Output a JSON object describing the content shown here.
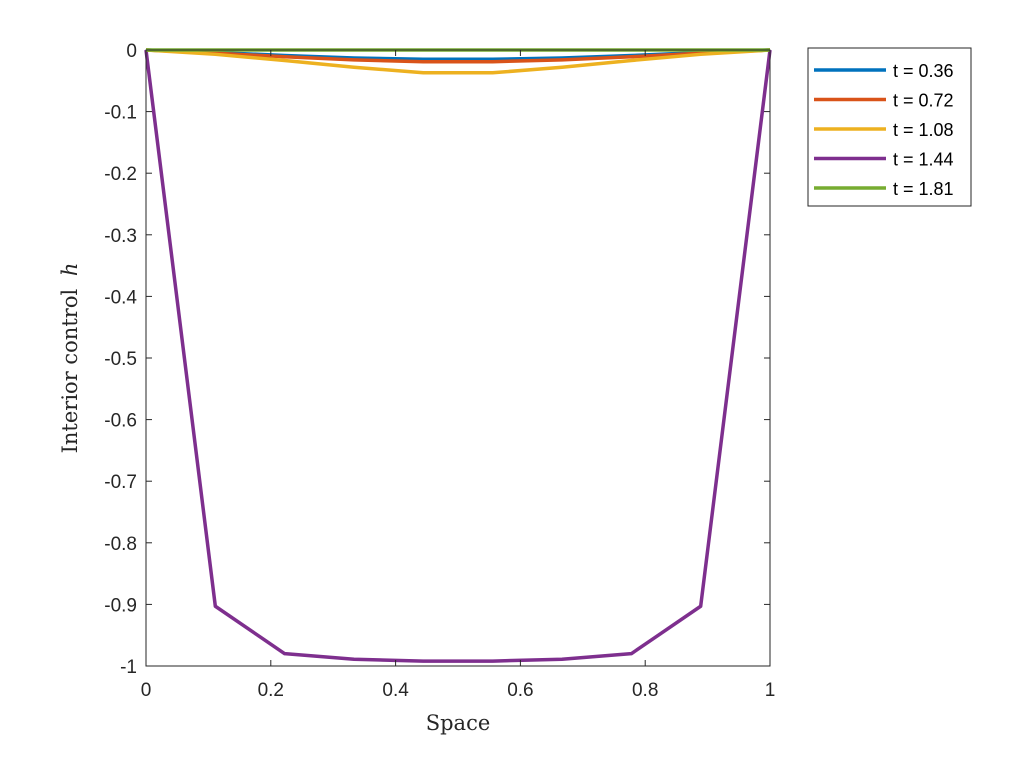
{
  "chart_data": {
    "type": "line",
    "title": "",
    "xlabel": "Space",
    "ylabel": "Interior control",
    "ylabel_symbol": "h",
    "xlim": [
      0,
      1
    ],
    "ylim": [
      -1,
      0
    ],
    "xticks": [
      0,
      0.2,
      0.4,
      0.6,
      0.8,
      1
    ],
    "xtick_labels": [
      "0",
      "0.2",
      "0.4",
      "0.6",
      "0.8",
      "1"
    ],
    "yticks": [
      -1,
      -0.9,
      -0.8,
      -0.7,
      -0.6,
      -0.5,
      -0.4,
      -0.3,
      -0.2,
      -0.1,
      0
    ],
    "ytick_labels": [
      "-1",
      "-0.9",
      "-0.8",
      "-0.7",
      "-0.6",
      "-0.5",
      "-0.4",
      "-0.3",
      "-0.2",
      "-0.1",
      "0"
    ],
    "grid": false,
    "legend_position": "outside-top-right",
    "x": [
      0,
      0.1111,
      0.2222,
      0.3333,
      0.4444,
      0.5556,
      0.6667,
      0.7778,
      0.8889,
      1
    ],
    "series": [
      {
        "name": "t = 0.36",
        "color": "#0072BD",
        "values": [
          0,
          -0.004,
          -0.009,
          -0.013,
          -0.015,
          -0.015,
          -0.013,
          -0.009,
          -0.004,
          0
        ]
      },
      {
        "name": "t = 0.72",
        "color": "#D95319",
        "values": [
          0,
          -0.005,
          -0.011,
          -0.016,
          -0.019,
          -0.019,
          -0.016,
          -0.011,
          -0.005,
          0
        ]
      },
      {
        "name": "t = 1.08",
        "color": "#EDB120",
        "values": [
          0,
          -0.007,
          -0.017,
          -0.028,
          -0.037,
          -0.037,
          -0.028,
          -0.017,
          -0.007,
          0
        ]
      },
      {
        "name": "t = 1.44",
        "color": "#7E2F8E",
        "values": [
          0,
          -0.903,
          -0.98,
          -0.989,
          -0.992,
          -0.992,
          -0.989,
          -0.98,
          -0.903,
          0
        ]
      },
      {
        "name": "t = 1.81",
        "color": "#77AC30",
        "values": [
          0,
          0,
          0,
          0,
          0,
          0,
          0,
          0,
          0,
          0
        ]
      }
    ]
  }
}
